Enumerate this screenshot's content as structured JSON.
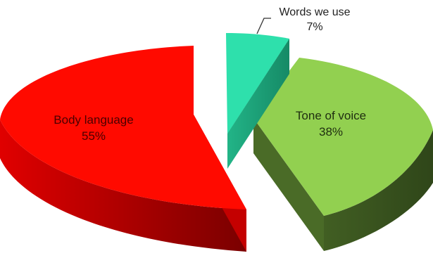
{
  "chart_data": {
    "type": "pie",
    "style": "3d-exploded",
    "slices": [
      {
        "label": "Body language",
        "value_label": "55%",
        "value": 55,
        "top_color": "#ff0a00",
        "side_color": "#b80000"
      },
      {
        "label": "Tone of voice",
        "value_label": "38%",
        "value": 38,
        "top_color": "#92d050",
        "side_color": "#3e5a22"
      },
      {
        "label": "Words we use",
        "value_label": "7%",
        "value": 7,
        "top_color": "#2ee0ac",
        "side_color": "#1fa07a"
      }
    ],
    "legend": "none"
  }
}
